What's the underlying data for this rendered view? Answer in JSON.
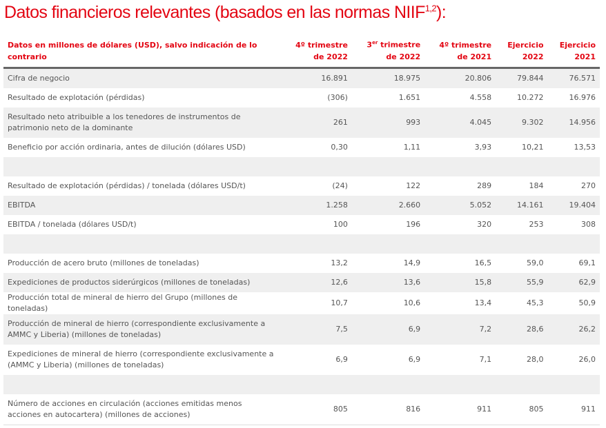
{
  "title": "Datos financieros relevantes (basados en las normas NIIF",
  "title_sup": "1,2",
  "title_end": "):",
  "header": {
    "label": "Datos en millones de dólares (USD), salvo indicación de lo contrario",
    "cols": [
      {
        "a": "4º trimestre",
        "sup": "",
        "b": "de 2022"
      },
      {
        "a": "3",
        "sup": "er",
        "a2": " trimestre",
        "b": "de 2022"
      },
      {
        "a": "4º trimestre",
        "sup": "",
        "b": "de 2021"
      },
      {
        "a": "Ejercicio",
        "sup": "",
        "b": "2022"
      },
      {
        "a": "Ejercicio",
        "sup": "",
        "b": "2021"
      }
    ]
  },
  "rows": [
    {
      "label": "Cifra de negocio",
      "v": [
        "16.891",
        "18.975",
        "20.806",
        "79.844",
        "76.571"
      ]
    },
    {
      "label": "Resultado de explotación (pérdidas)",
      "v": [
        "(306)",
        "1.651",
        "4.558",
        "10.272",
        "16.976"
      ]
    },
    {
      "label": "Resultado neto atribuible a los tenedores de instrumentos de patrimonio neto de la dominante",
      "v": [
        "261",
        "993",
        "4.045",
        "9.302",
        "14.956"
      ]
    },
    {
      "label": "Beneficio por acción ordinaria, antes de dilución (dólares USD)",
      "v": [
        "0,30",
        "1,11",
        "3,93",
        "10,21",
        "13,53"
      ]
    },
    {
      "label": "",
      "v": [
        "",
        "",
        "",
        "",
        ""
      ]
    },
    {
      "label": "Resultado de explotación (pérdidas) / tonelada (dólares USD/t)",
      "v": [
        "(24)",
        "122",
        "289",
        "184",
        "270"
      ]
    },
    {
      "label": "EBITDA",
      "v": [
        "1.258",
        "2.660",
        "5.052",
        "14.161",
        "19.404"
      ]
    },
    {
      "label": "EBITDA / tonelada (dólares USD/t)",
      "v": [
        "100",
        "196",
        "320",
        "253",
        "308"
      ]
    },
    {
      "label": "",
      "v": [
        "",
        "",
        "",
        "",
        ""
      ]
    },
    {
      "label": "Producción de acero bruto (millones de toneladas)",
      "v": [
        "13,2",
        "14,9",
        "16,5",
        "59,0",
        "69,1"
      ]
    },
    {
      "label": "Expediciones de productos siderúrgicos (millones de toneladas)",
      "v": [
        "12,6",
        "13,6",
        "15,8",
        "55,9",
        "62,9"
      ]
    },
    {
      "label": "Producción total de mineral de hierro del Grupo (millones de toneladas)",
      "v": [
        "10,7",
        "10,6",
        "13,4",
        "45,3",
        "50,9"
      ]
    },
    {
      "label": "Producción de mineral de hierro (correspondiente exclusivamente a AMMC y Liberia) (millones de toneladas)",
      "v": [
        "7,5",
        "6,9",
        "7,2",
        "28,6",
        "26,2"
      ]
    },
    {
      "label": "Expediciones de mineral de hierro (correspondiente exclusivamente a (AMMC y Liberia) (millones de toneladas)",
      "v": [
        "6,9",
        "6,9",
        "7,1",
        "28,0",
        "26,0"
      ]
    },
    {
      "label": "",
      "v": [
        "",
        "",
        "",
        "",
        ""
      ]
    },
    {
      "label": "Número de acciones en circulación (acciones emitidas menos acciones en autocartera) (millones de acciones)",
      "v": [
        "805",
        "816",
        "911",
        "805",
        "911"
      ]
    }
  ]
}
